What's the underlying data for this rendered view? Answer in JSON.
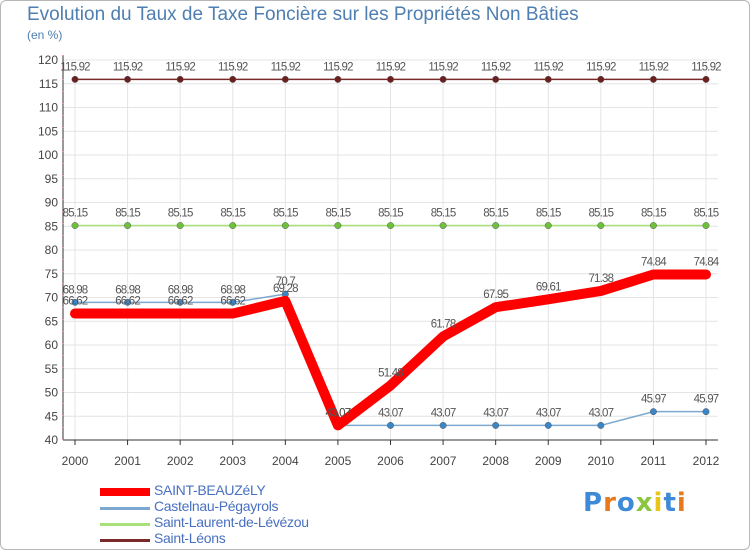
{
  "title": "Evolution du Taux de Taxe Foncière sur les Propriétés Non Bâties",
  "unit": "(en %)",
  "logo": {
    "text": "Proxiti",
    "colors": [
      "#3f8ad8",
      "#e87a1e",
      "#3f8ad8",
      "#8cc63f",
      "#e8c619",
      "#3f8ad8",
      "#e87a1e"
    ]
  },
  "chart_data": {
    "type": "line",
    "title": "Evolution du Taux de Taxe Foncière sur les Propriétés Non Bâties",
    "ylabel": "(en %)",
    "xlabel": "",
    "ylim": [
      40,
      120
    ],
    "yticks": [
      "40",
      "45",
      "50",
      "55",
      "60",
      "65",
      "70",
      "75",
      "80",
      "85",
      "90",
      "95",
      "100",
      "105",
      "110",
      "115",
      "120"
    ],
    "categories": [
      "2000",
      "2001",
      "2002",
      "2003",
      "2004",
      "2005",
      "2006",
      "2007",
      "2008",
      "2009",
      "2010",
      "2011",
      "2012"
    ],
    "series": [
      {
        "name": "SAINT-BEAUZéLY",
        "color": "#ff0000",
        "marker": "#ff0000",
        "width": 10,
        "values": [
          66.62,
          66.62,
          66.62,
          66.62,
          69.28,
          43.07,
          51.48,
          61.78,
          67.95,
          69.61,
          71.38,
          74.84,
          74.84
        ],
        "labels": [
          "66.62",
          "66.62",
          "66.62",
          "66.62",
          "69.28",
          "43.07",
          "51.48",
          "61.78",
          "67.95",
          "69.61",
          "71.38",
          "74.84",
          "74.84"
        ]
      },
      {
        "name": "Castelnau-Pégayrols",
        "color": "#7ca8d0",
        "marker": "#3b86c6",
        "width": 1.5,
        "values": [
          68.98,
          68.98,
          68.98,
          68.98,
          70.7,
          43.07,
          43.07,
          43.07,
          43.07,
          43.07,
          43.07,
          45.97,
          45.97
        ],
        "labels": [
          "68.98",
          "68.98",
          "68.98",
          "68.98",
          "70.7",
          "43.07",
          "43.07",
          "43.07",
          "43.07",
          "43.07",
          "43.07",
          "45.97",
          "45.97"
        ]
      },
      {
        "name": "Saint-Laurent-de-Lévézou",
        "color": "#a8e07a",
        "marker": "#6cc23a",
        "width": 1.5,
        "values": [
          85.15,
          85.15,
          85.15,
          85.15,
          85.15,
          85.15,
          85.15,
          85.15,
          85.15,
          85.15,
          85.15,
          85.15,
          85.15
        ],
        "labels": [
          "85.15",
          "85.15",
          "85.15",
          "85.15",
          "85.15",
          "85.15",
          "85.15",
          "85.15",
          "85.15",
          "85.15",
          "85.15",
          "85.15",
          "85.15"
        ]
      },
      {
        "name": "Saint-Léons",
        "color": "#7a2a2a",
        "marker": "#6b1f1f",
        "width": 1.5,
        "values": [
          115.92,
          115.92,
          115.92,
          115.92,
          115.92,
          115.92,
          115.92,
          115.92,
          115.92,
          115.92,
          115.92,
          115.92,
          115.92
        ],
        "labels": [
          "115.92",
          "115.92",
          "115.92",
          "115.92",
          "115.92",
          "115.92",
          "115.92",
          "115.92",
          "115.92",
          "115.92",
          "115.92",
          "115.92",
          "115.92"
        ]
      }
    ]
  }
}
